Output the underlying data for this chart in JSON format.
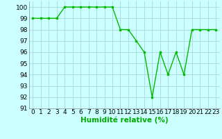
{
  "x": [
    0,
    1,
    2,
    3,
    4,
    5,
    6,
    7,
    8,
    9,
    10,
    11,
    12,
    13,
    14,
    15,
    16,
    17,
    18,
    19,
    20,
    21,
    22,
    23
  ],
  "y": [
    99,
    99,
    99,
    99,
    100,
    100,
    100,
    100,
    100,
    100,
    100,
    98,
    98,
    97,
    96,
    92,
    96,
    94,
    96,
    94,
    98,
    98,
    98,
    98
  ],
  "line_color": "#00bb00",
  "marker": "s",
  "marker_size": 2.0,
  "line_width": 1.0,
  "bg_color": "#ccffff",
  "grid_color": "#aadddd",
  "xlabel": "Humidité relative (%)",
  "xlabel_color": "#00aa00",
  "xlabel_fontsize": 7.5,
  "tick_fontsize": 6.5,
  "ylim": [
    91,
    100.5
  ],
  "xlim": [
    -0.5,
    23.5
  ],
  "yticks": [
    91,
    92,
    93,
    94,
    95,
    96,
    97,
    98,
    99,
    100
  ],
  "xticks": [
    0,
    1,
    2,
    3,
    4,
    5,
    6,
    7,
    8,
    9,
    10,
    11,
    12,
    13,
    14,
    15,
    16,
    17,
    18,
    19,
    20,
    21,
    22,
    23
  ]
}
